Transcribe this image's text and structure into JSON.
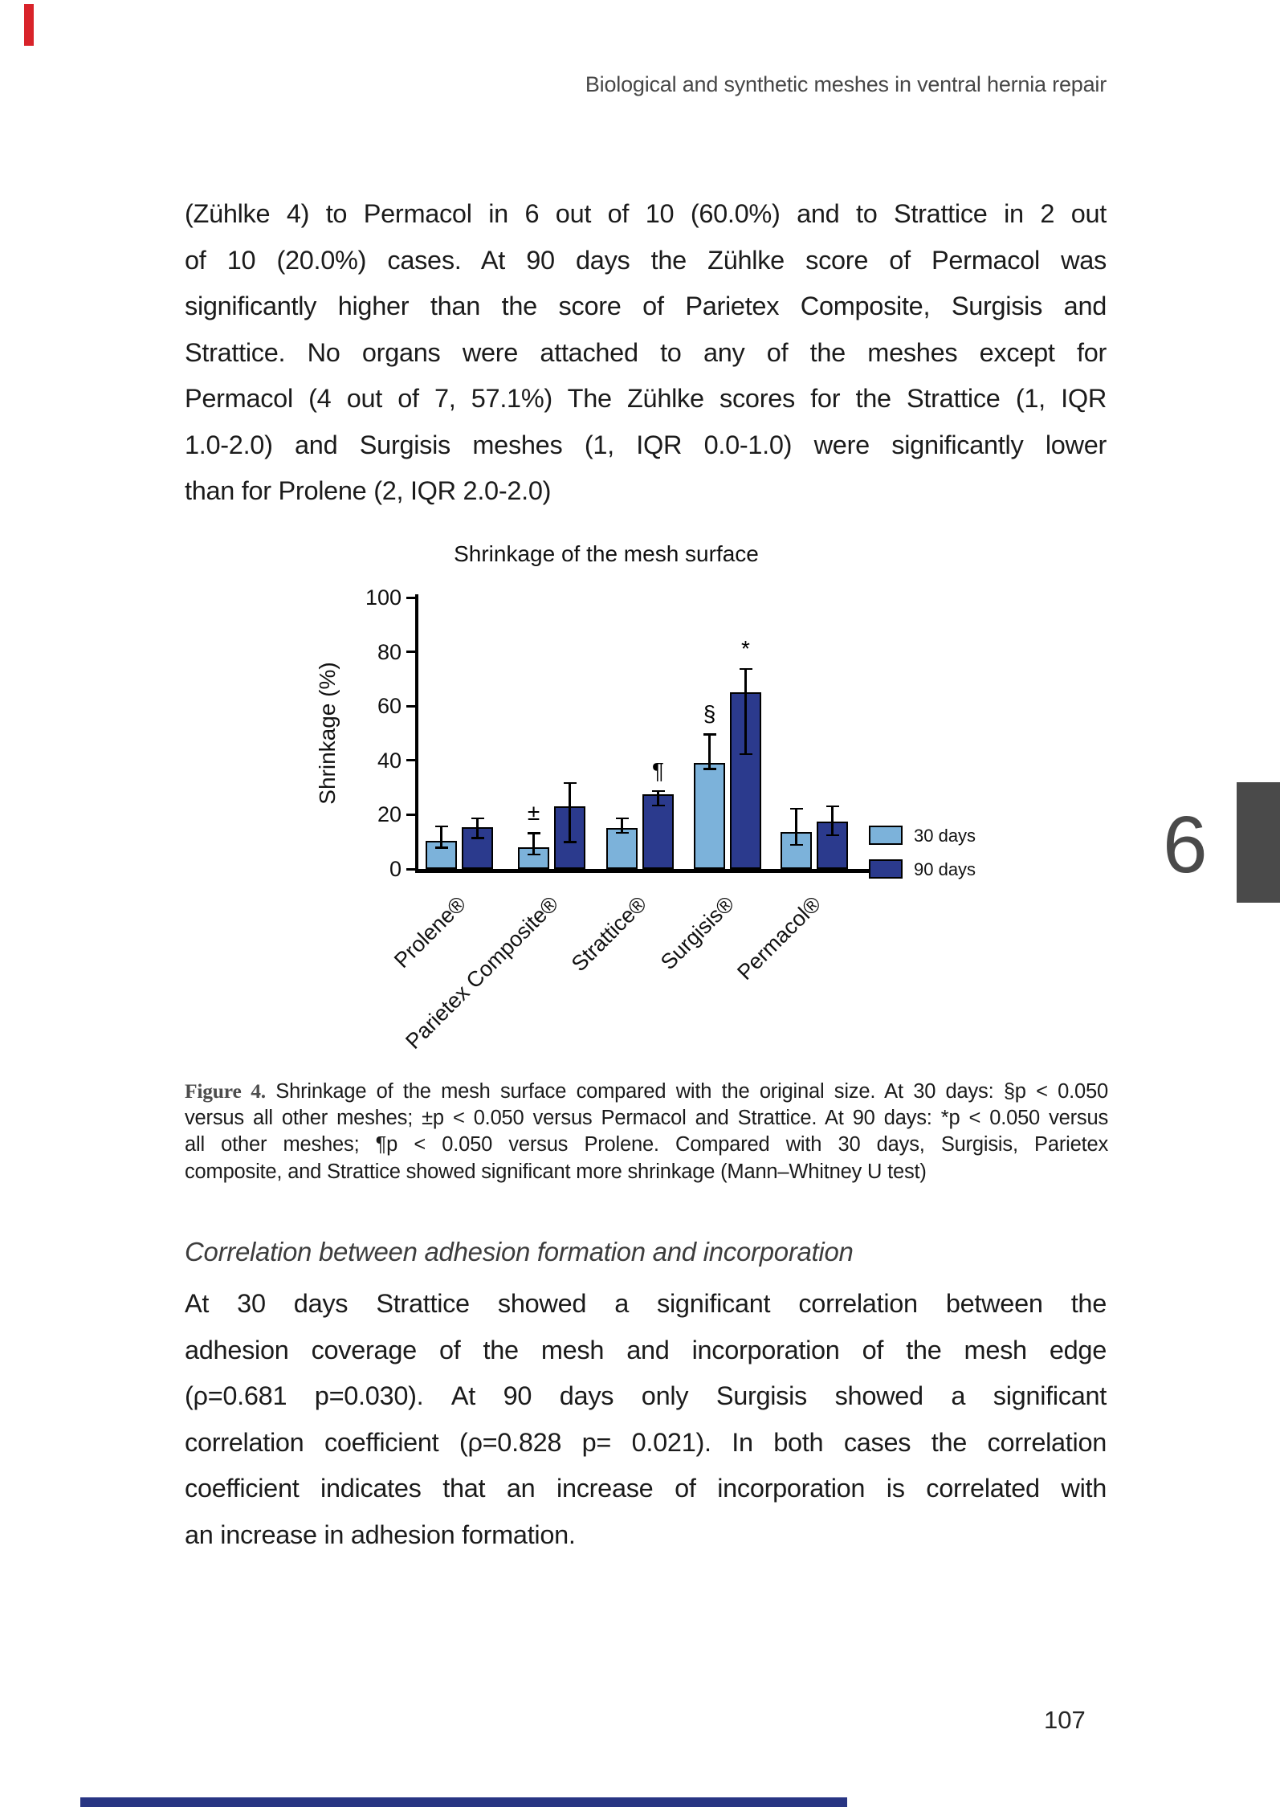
{
  "page": {
    "header": "Biological and synthetic meshes in ventral hernia repair",
    "page_number": "107",
    "chapter_number": "6"
  },
  "paragraph1_lines": [
    "(Zühlke 4) to Permacol in 6 out of 10 (60.0%) and to Strattice in 2 out",
    "of 10 (20.0%) cases. At 90 days the Zühlke score of Permacol was",
    "significantly higher than the score of Parietex Composite, Surgisis and",
    "Strattice. No organs were attached to any of the meshes except for",
    "Permacol (4 out of 7, 57.1%) The Zühlke scores for the Strattice (1, IQR",
    "1.0-2.0) and Surgisis meshes (1, IQR 0.0-1.0) were significantly lower",
    "than for Prolene (2, IQR 2.0-2.0)"
  ],
  "figure_caption": {
    "label": "Figure 4.",
    "line1_rest": " Shrinkage of the mesh surface compared with the original size. At 30 days: §p < 0.050",
    "lines": [
      "versus all other meshes; ±p < 0.050 versus Permacol and Strattice. At 90 days: *p < 0.050 versus",
      "all other meshes; ¶p < 0.050 versus Prolene. Compared with 30 days, Surgisis, Parietex",
      "composite, and Strattice showed significant more shrinkage (Mann–Whitney U test)"
    ]
  },
  "section_heading": "Correlation between adhesion formation and incorporation",
  "paragraph2_lines": [
    "At 30 days Strattice showed a significant correlation between the",
    "adhesion coverage of the mesh and incorporation of the mesh edge",
    "(ρ=0.681 p=0.030). At 90 days only Surgisis showed a significant",
    "correlation coefficient (ρ=0.828 p= 0.021). In both cases the correlation",
    "coefficient indicates that an increase of incorporation is correlated with",
    "an increase in adhesion formation.",
    ""
  ],
  "chart_data": {
    "type": "bar",
    "title": "Shrinkage of the mesh surface",
    "xlabel": "",
    "ylabel": "Shrinkage (%)",
    "ylim": [
      0,
      100
    ],
    "yticks": [
      0,
      20,
      40,
      60,
      80,
      100
    ],
    "grid": false,
    "legend_position": "right-bottom",
    "categories": [
      "Prolene®",
      "Parietex Composite®",
      "Strattice®",
      "Surgisis®",
      "Permacol®"
    ],
    "series": [
      {
        "name": "30 days",
        "color": "#7cb2da",
        "values": [
          10.5,
          8,
          15,
          39,
          13.5
        ],
        "err_lo": [
          7.5,
          5,
          13,
          36.5,
          8.5
        ],
        "err_hi": [
          16,
          13.5,
          19,
          50,
          22.5
        ],
        "annotations": [
          "",
          "±",
          "",
          "§",
          ""
        ]
      },
      {
        "name": "90 days",
        "color": "#2b3a8d",
        "values": [
          15.5,
          23,
          27.5,
          65,
          17.5
        ],
        "err_lo": [
          11,
          9.5,
          23,
          42,
          12
        ],
        "err_hi": [
          19,
          32,
          29,
          74,
          23.5
        ],
        "annotations": [
          "",
          "",
          "¶",
          "*",
          ""
        ]
      }
    ]
  },
  "decorations": {
    "tab_color": "#4a4a4a",
    "red_strip_color": "#d8232a",
    "bottom_bar_color": "#283583"
  }
}
